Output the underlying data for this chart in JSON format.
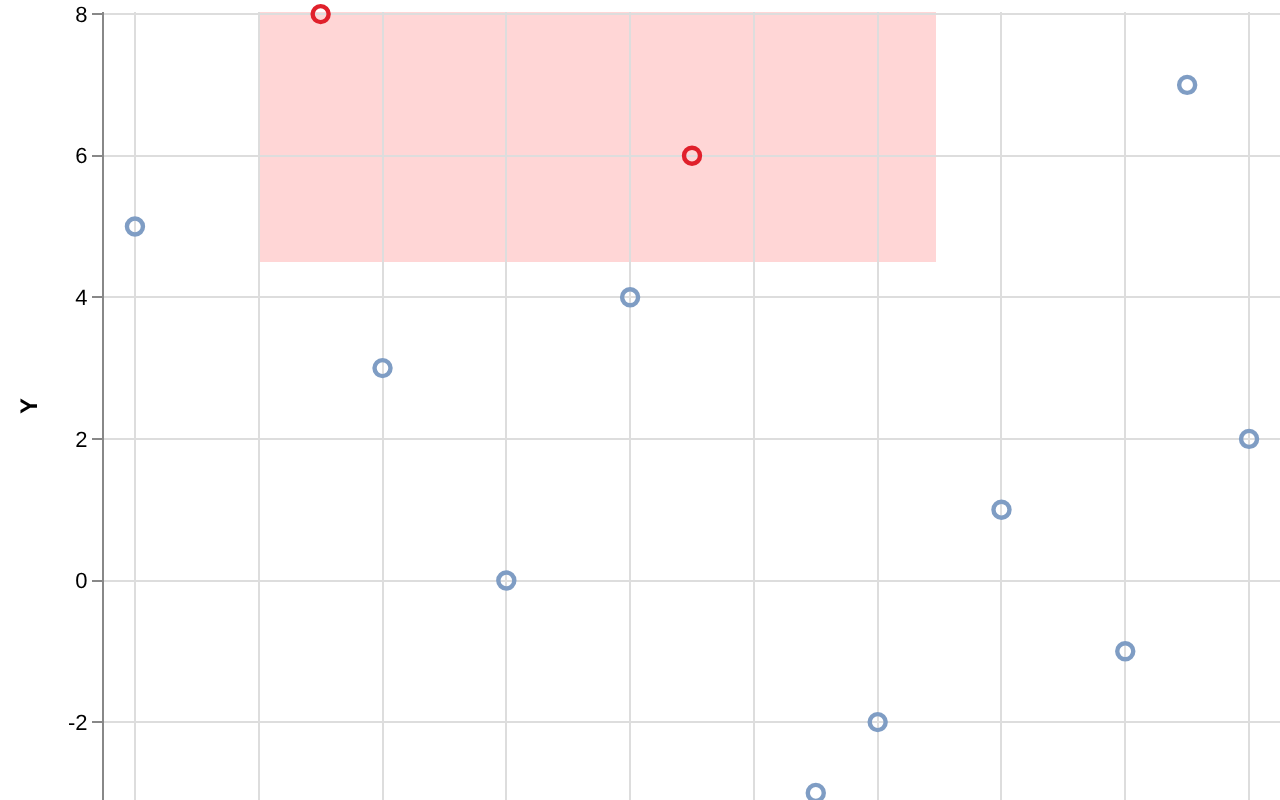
{
  "chart_data": {
    "type": "scatter",
    "ylabel": "Y",
    "categories": [
      null,
      null,
      null,
      null,
      null,
      null,
      null,
      null,
      null,
      null,
      null,
      null,
      null,
      null,
      null,
      null,
      null,
      null,
      null
    ],
    "values": [
      5,
      null,
      null,
      8,
      3,
      null,
      0,
      null,
      4,
      6,
      null,
      -3,
      -2,
      null,
      1,
      null,
      -1,
      7,
      2
    ],
    "colors": [
      "#7f9dc4",
      "#7f9dc4",
      "#7f9dc4",
      "#e0202b",
      "#7f9dc4",
      "#7f9dc4",
      "#7f9dc4",
      "#7f9dc4",
      "#7f9dc4",
      "#e0202b",
      "#7f9dc4",
      "#7f9dc4",
      "#7f9dc4",
      "#7f9dc4",
      "#7f9dc4",
      "#7f9dc4",
      "#7f9dc4",
      "#7f9dc4",
      "#7f9dc4"
    ],
    "marker": "circle",
    "grid": true,
    "tick_labels": "y",
    "ylim": [
      -3.1,
      8.03
    ],
    "yticks": [
      -2,
      0,
      2,
      4,
      6,
      8
    ]
  }
}
